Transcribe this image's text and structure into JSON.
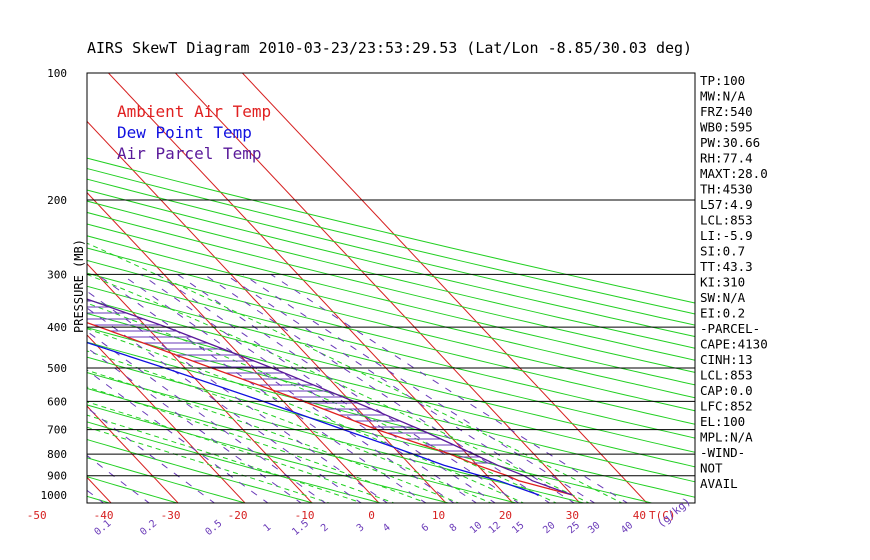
{
  "chart_data": {
    "type": "line",
    "title": "AIRS SkewT Diagram 2010-03-23/23:53:29.53 (Lat/Lon -8.85/30.03 deg)",
    "ylabel": "PRESSURE (MB)",
    "xlabel": "T(C)",
    "mixing_ratio_label": "(g/kg)",
    "log_pressure_axis": true,
    "ylim": [
      1000,
      100
    ],
    "xlim_bottom": [
      -50,
      40
    ],
    "xlim_top": [
      -120,
      -40
    ],
    "pressure_ticks": [
      100,
      200,
      300,
      400,
      500,
      600,
      700,
      800,
      900,
      1000
    ],
    "bottom_temp_ticks": [
      -50,
      -40,
      -30,
      -20,
      -10,
      0,
      10,
      20,
      30,
      40
    ],
    "top_temp_ticks": [
      -120,
      -110,
      -100,
      -90,
      -80,
      -70,
      -60,
      -50,
      -40
    ],
    "mixing_ratio_ticks": [
      "0.1",
      "0.2",
      "0.5",
      "1",
      "1.5",
      "2",
      "3",
      "4",
      "6",
      "8",
      "10",
      "12",
      "15",
      "20",
      "25",
      "30",
      "40"
    ],
    "legend": {
      "placement": "top-left",
      "entries": [
        {
          "label": "Ambient Air Temp",
          "color": "#e02020"
        },
        {
          "label": "Dew Point Temp",
          "color": "#1010e0"
        },
        {
          "label": "Air Parcel Temp",
          "color": "#5a1a9a"
        }
      ]
    },
    "series": [
      {
        "name": "Ambient Air Temp",
        "color": "#e02020",
        "points": [
          [
            1000,
            30
          ],
          [
            925,
            24
          ],
          [
            900,
            23
          ],
          [
            850,
            20
          ],
          [
            800,
            17.5
          ],
          [
            700,
            10
          ],
          [
            600,
            3
          ],
          [
            500,
            -6
          ],
          [
            400,
            -17
          ],
          [
            300,
            -32
          ],
          [
            250,
            -43
          ],
          [
            200,
            -56
          ],
          [
            175,
            -62
          ],
          [
            150,
            -67
          ],
          [
            125,
            -73
          ],
          [
            100,
            -78
          ]
        ]
      },
      {
        "name": "Dew Point Temp",
        "color": "#1010e0",
        "points": [
          [
            1000,
            25
          ],
          [
            925,
            21
          ],
          [
            900,
            19
          ],
          [
            850,
            15
          ],
          [
            800,
            12
          ],
          [
            700,
            5
          ],
          [
            600,
            -3
          ],
          [
            500,
            -13
          ],
          [
            400,
            -26
          ],
          [
            300,
            -41
          ],
          [
            250,
            -53
          ],
          [
            200,
            -62
          ],
          [
            175,
            -67
          ],
          [
            150,
            -70
          ],
          [
            125,
            -77
          ],
          [
            100,
            -82
          ]
        ]
      },
      {
        "name": "Air Parcel Temp",
        "color": "#5a1a9a",
        "points": [
          [
            1000,
            30
          ],
          [
            925,
            26
          ],
          [
            900,
            25.5
          ],
          [
            850,
            23
          ],
          [
            800,
            21
          ],
          [
            700,
            16.5
          ],
          [
            600,
            10.5
          ],
          [
            500,
            3
          ],
          [
            400,
            -7
          ],
          [
            300,
            -22
          ],
          [
            250,
            -32
          ],
          [
            200,
            -45
          ],
          [
            175,
            -53
          ],
          [
            150,
            -61
          ],
          [
            125,
            -69
          ],
          [
            100,
            -78
          ]
        ]
      }
    ],
    "isotherms_c": [
      -140,
      -130,
      -120,
      -110,
      -100,
      -90,
      -80,
      -70,
      -60,
      -50,
      -40,
      -30,
      -20,
      -10,
      0,
      10,
      20,
      30,
      40
    ],
    "dry_adiabats_theta_k": [
      230,
      240,
      250,
      260,
      270,
      280,
      290,
      300,
      310,
      320,
      330,
      340,
      350,
      360,
      370,
      380,
      390,
      400,
      410,
      420,
      430,
      440,
      450,
      460,
      470
    ],
    "moist_adiabats_c": [
      -10,
      -5,
      0,
      5,
      10,
      15,
      20,
      25,
      30,
      35
    ],
    "mixing_ratios_gkg": [
      0.1,
      0.2,
      0.5,
      1,
      1.5,
      2,
      3,
      4,
      6,
      8,
      10,
      12,
      15,
      20,
      25,
      30,
      40
    ],
    "grid": true
  },
  "indices": [
    "TP:100",
    "MW:N/A",
    "FRZ:540",
    "WB0:595",
    "PW:30.66",
    "RH:77.4",
    "MAXT:28.0",
    "TH:4530",
    "L57:4.9",
    "LCL:853",
    "LI:-5.9",
    "SI:0.7",
    "TT:43.3",
    "KI:310",
    "SW:N/A",
    "EI:0.2",
    "-PARCEL-",
    "CAPE:4130",
    "CINH:13",
    "LCL:853",
    "CAP:0.0",
    "LFC:852",
    "EL:100",
    "MPL:N/A",
    "-WIND-",
    "NOT",
    "AVAIL"
  ],
  "colors": {
    "isotherm": "#d62020",
    "dry_adiabat": "#22d022",
    "moist_adiabat": "#22d022",
    "mixing_ratio": "#6a3ab8",
    "isobar": "#000000",
    "axis_label_red": "#d62020",
    "axis_label_purple": "#6a3ab8"
  }
}
